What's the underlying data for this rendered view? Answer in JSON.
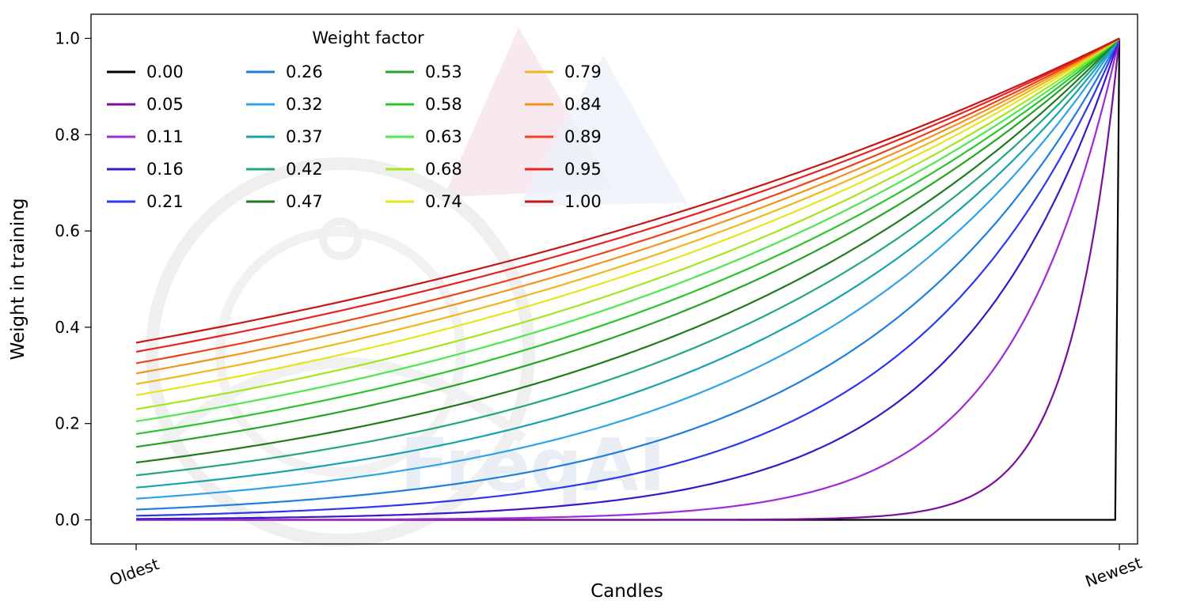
{
  "figure": {
    "background": "#ffffff",
    "watermark": "FreqAI"
  },
  "chart_data": {
    "type": "line",
    "title": "",
    "xlabel": "Candles",
    "ylabel": "Weight in training",
    "x_range_labels": [
      "Oldest",
      "Newest"
    ],
    "ylim": [
      0,
      1
    ],
    "yticks": [
      0,
      0.2,
      0.4,
      0.6,
      0.8,
      1
    ],
    "grid": false,
    "legend_title": "Weight factor",
    "legend_position": "upper left",
    "legend_columns": 4,
    "formula": "weight(t) = exp(-(1 - t) / factor) for t in [0,1] from oldest to newest candle; factor 0 gives weight 0 everywhere except newest candle = 1",
    "series": [
      {
        "name": "0.00",
        "factor": 0,
        "color": "#000000",
        "weight_at_oldest": 0,
        "weight_at_newest": 1
      },
      {
        "name": "0.05",
        "factor": 0.05,
        "color": "#7b0c9e",
        "weight_at_oldest": 0,
        "weight_at_newest": 1
      },
      {
        "name": "0.11",
        "factor": 0.11,
        "color": "#a029d8",
        "weight_at_oldest": 0.0001,
        "weight_at_newest": 1
      },
      {
        "name": "0.16",
        "factor": 0.16,
        "color": "#3c16c8",
        "weight_at_oldest": 0.0019,
        "weight_at_newest": 1
      },
      {
        "name": "0.21",
        "factor": 0.21,
        "color": "#2b38ef",
        "weight_at_oldest": 0.0086,
        "weight_at_newest": 1
      },
      {
        "name": "0.26",
        "factor": 0.26,
        "color": "#1f7fdc",
        "weight_at_oldest": 0.0214,
        "weight_at_newest": 1
      },
      {
        "name": "0.32",
        "factor": 0.32,
        "color": "#2fa2ea",
        "weight_at_oldest": 0.0439,
        "weight_at_newest": 1
      },
      {
        "name": "0.37",
        "factor": 0.37,
        "color": "#17a3ab",
        "weight_at_oldest": 0.0669,
        "weight_at_newest": 1
      },
      {
        "name": "0.42",
        "factor": 0.42,
        "color": "#22a77c",
        "weight_at_oldest": 0.0923,
        "weight_at_newest": 1
      },
      {
        "name": "0.47",
        "factor": 0.47,
        "color": "#1d7a1d",
        "weight_at_oldest": 0.119,
        "weight_at_newest": 1
      },
      {
        "name": "0.53",
        "factor": 0.53,
        "color": "#24a524",
        "weight_at_oldest": 0.1515,
        "weight_at_newest": 1
      },
      {
        "name": "0.58",
        "factor": 0.58,
        "color": "#2bc42b",
        "weight_at_oldest": 0.1783,
        "weight_at_newest": 1
      },
      {
        "name": "0.63",
        "factor": 0.63,
        "color": "#4fe64f",
        "weight_at_oldest": 0.2044,
        "weight_at_newest": 1
      },
      {
        "name": "0.68",
        "factor": 0.68,
        "color": "#a5e51e",
        "weight_at_oldest": 0.2298,
        "weight_at_newest": 1
      },
      {
        "name": "0.74",
        "factor": 0.74,
        "color": "#e6e61e",
        "weight_at_oldest": 0.2588,
        "weight_at_newest": 1
      },
      {
        "name": "0.79",
        "factor": 0.79,
        "color": "#f2b51c",
        "weight_at_oldest": 0.2823,
        "weight_at_newest": 1
      },
      {
        "name": "0.84",
        "factor": 0.84,
        "color": "#f2941c",
        "weight_at_oldest": 0.304,
        "weight_at_newest": 1
      },
      {
        "name": "0.89",
        "factor": 0.89,
        "color": "#ef421c",
        "weight_at_oldest": 0.3251,
        "weight_at_newest": 1
      },
      {
        "name": "0.95",
        "factor": 0.95,
        "color": "#e62222",
        "weight_at_oldest": 0.349,
        "weight_at_newest": 1
      },
      {
        "name": "1.00",
        "factor": 1,
        "color": "#c51717",
        "weight_at_oldest": 0.3679,
        "weight_at_newest": 1
      }
    ]
  }
}
